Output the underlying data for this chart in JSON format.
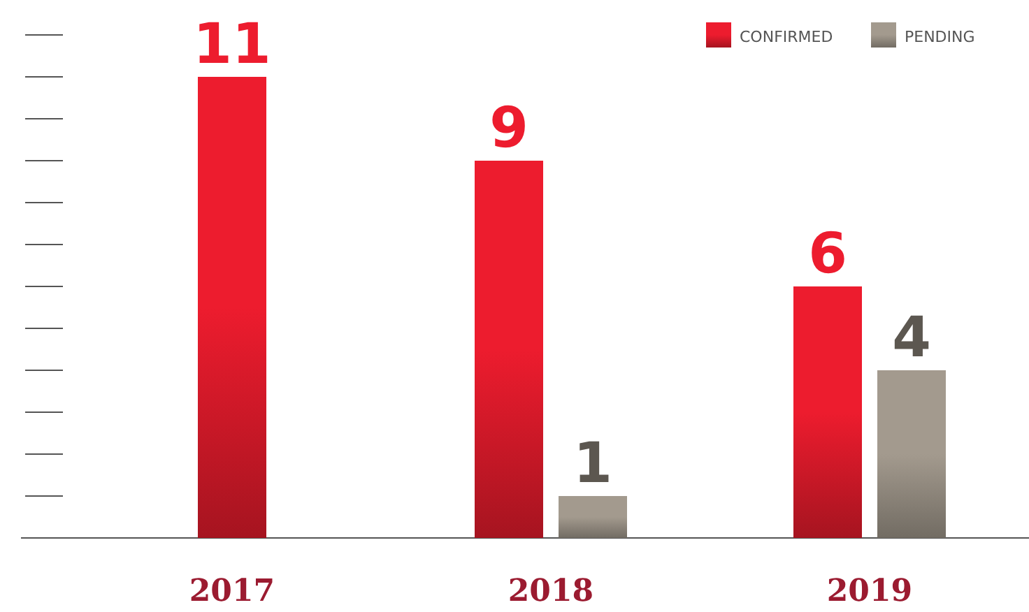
{
  "chart_data": {
    "type": "bar",
    "categories": [
      "2017",
      "2018",
      "2019"
    ],
    "series": [
      {
        "name": "CONFIRMED",
        "color": "#ed1c2e",
        "values": [
          11,
          9,
          6
        ]
      },
      {
        "name": "PENDING",
        "color": "#a39a8e",
        "values": [
          null,
          1,
          4
        ]
      }
    ],
    "data_labels": true,
    "legend": "top right"
  }
}
